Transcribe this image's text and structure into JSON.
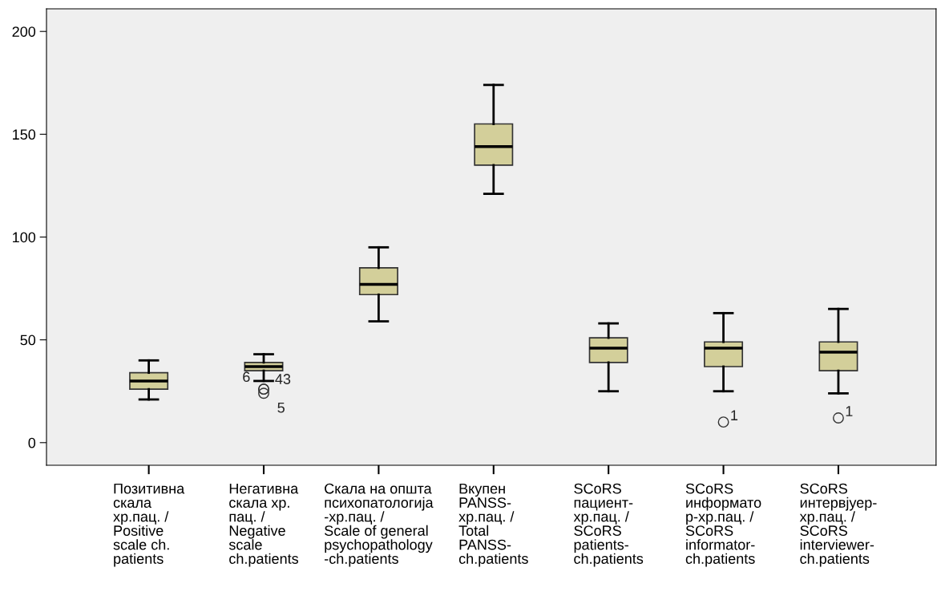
{
  "chart_data": {
    "type": "box",
    "categories": [
      "Позитивна\nскала\nхр.пац. /\nPositive\nscale ch.\npatients",
      "Негативна\nскала хр.\nпац. /\nNegative\nscale\nch.patients",
      "Скала на општа\nпсихопатологија\n-хр.пац. /\nScale of general\npsychopathology\n-ch.patients",
      "Вкупен\nPANSS-\nхр.пац. /\nTotal\nPANSS-\nch.patients",
      "SCoRS\nпациент-\nхр.пац. /\nSCoRS\npatients-\nch.patients",
      "SCoRS\nинформато\nр-хр.пац. /\nSCoRS\ninformator-\nch.patients",
      "SCoRS\nинтервјуер-\nхр.пац. /\nSCoRS\ninterviewer-\nch.patients"
    ],
    "color": "#d3cf9a",
    "boxes": [
      {
        "low": 21,
        "q1": 26,
        "median": 30,
        "q3": 34,
        "high": 40
      },
      {
        "low": 30,
        "q1": 35,
        "median": 37,
        "q3": 39,
        "high": 43,
        "outliers": [
          26,
          26,
          24
        ]
      },
      {
        "low": 59,
        "q1": 72,
        "median": 77,
        "q3": 85,
        "high": 95
      },
      {
        "low": 121,
        "q1": 135,
        "median": 144,
        "q3": 155,
        "high": 174
      },
      {
        "low": 25,
        "q1": 39,
        "median": 46,
        "q3": 51,
        "high": 58
      },
      {
        "low": 25,
        "q1": 37,
        "median": 46,
        "q3": 49,
        "high": 63,
        "outliers": [
          10
        ]
      },
      {
        "low": 24,
        "q1": 35,
        "median": 44,
        "q3": 49,
        "high": 65,
        "outliers": [
          12
        ]
      }
    ],
    "annotations": [
      "6",
      "43",
      "5",
      "1",
      "1"
    ],
    "ylim": [
      -11,
      211
    ],
    "yticks": [
      0,
      50,
      100,
      150,
      200
    ],
    "grid": false
  }
}
